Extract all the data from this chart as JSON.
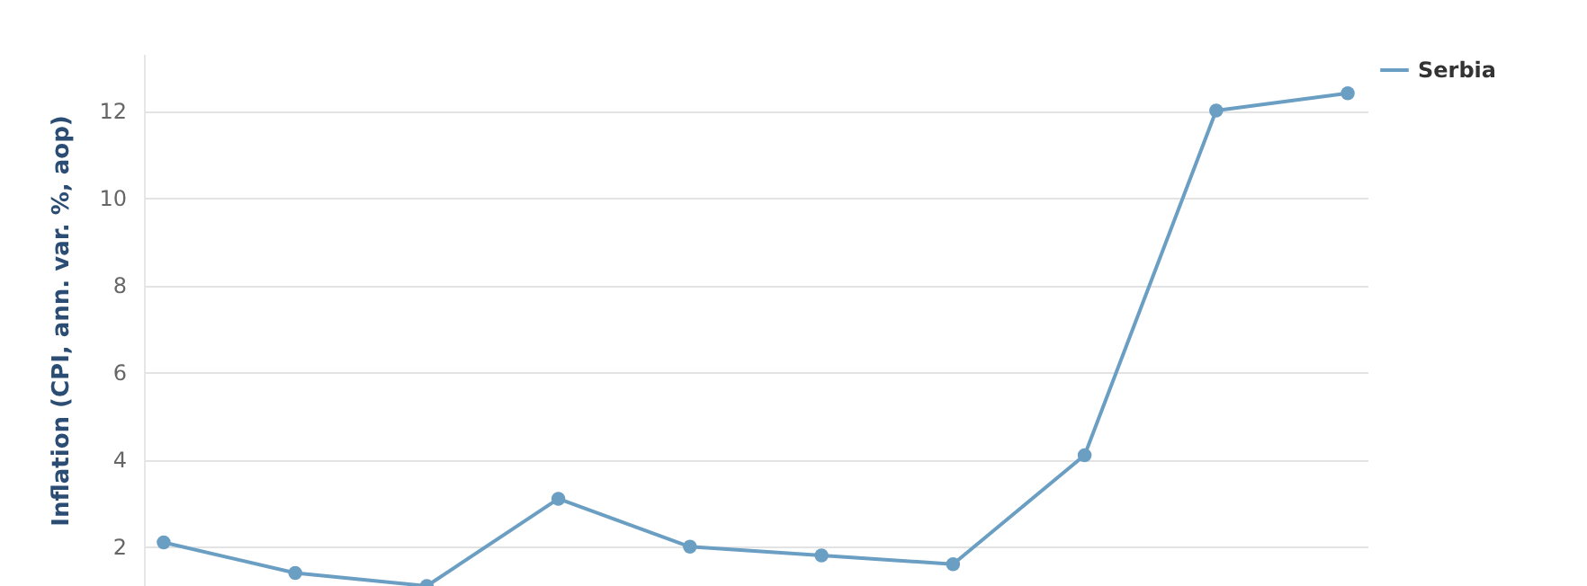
{
  "chart_data": {
    "type": "line",
    "ylabel": "Inflation (CPI, ann. var. %, aop)",
    "categories": [
      null,
      null,
      null,
      null,
      null,
      null,
      null,
      null,
      null,
      null
    ],
    "series": [
      {
        "name": "Serbia",
        "color": "#6a9ec2",
        "values": [
          2.1,
          1.4,
          1.1,
          3.1,
          2.0,
          1.8,
          1.6,
          4.1,
          12.0,
          12.4
        ]
      }
    ],
    "ylim": [
      1.1,
      13.3
    ],
    "yticks": [
      2,
      4,
      6,
      8,
      10,
      12
    ],
    "grid": "y",
    "legend": "top right",
    "marker": "circle",
    "line_style": "solid",
    "tick_labels": "y"
  }
}
